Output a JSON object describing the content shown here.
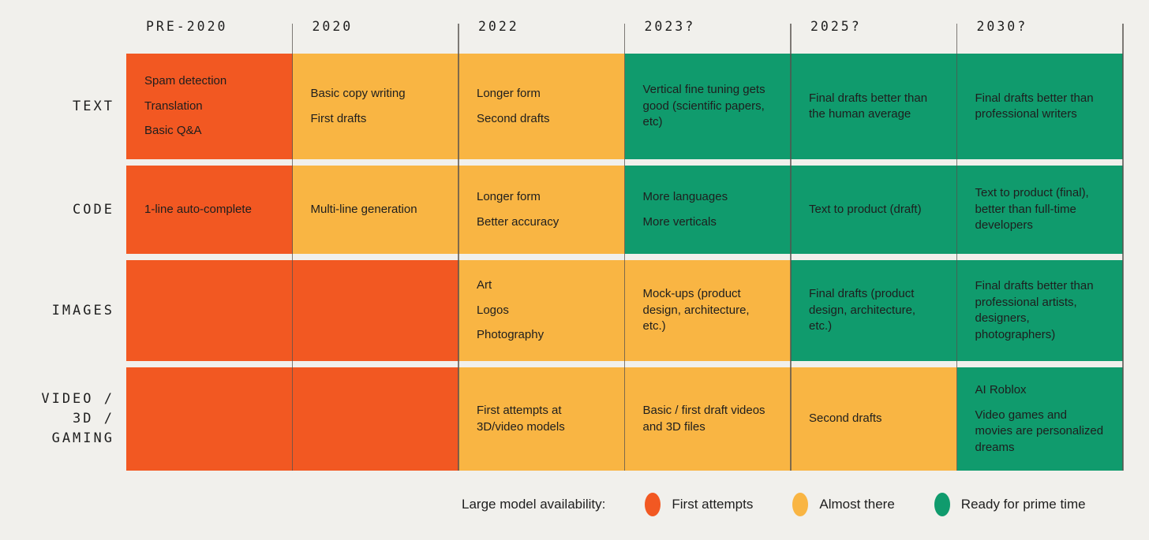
{
  "colors": {
    "background": "#F1F0EC",
    "text": "#1E1E1E",
    "grid_line": "#55524E",
    "first_attempts": "#F25822",
    "almost_there": "#F9B543",
    "ready": "#109B6D"
  },
  "chart_data": {
    "type": "table",
    "title": "Generative AI large model availability timeline",
    "columns": [
      "PRE-2020",
      "2020",
      "2022",
      "2023?",
      "2025?",
      "2030?"
    ],
    "rows": [
      {
        "label": "TEXT",
        "label_lines": [
          "TEXT"
        ],
        "cells": [
          {
            "status": "first_attempts",
            "items": [
              "Spam detection",
              "Translation",
              "Basic Q&A"
            ]
          },
          {
            "status": "almost_there",
            "items": [
              "Basic copy writing",
              "First drafts"
            ]
          },
          {
            "status": "almost_there",
            "items": [
              "Longer form",
              "Second drafts"
            ]
          },
          {
            "status": "ready",
            "items": [
              "Vertical fine tuning gets good (scientific papers, etc)"
            ]
          },
          {
            "status": "ready",
            "items": [
              "Final drafts better than the human average"
            ]
          },
          {
            "status": "ready",
            "items": [
              "Final drafts better than professional writers"
            ]
          }
        ]
      },
      {
        "label": "CODE",
        "label_lines": [
          "CODE"
        ],
        "cells": [
          {
            "status": "first_attempts",
            "items": [
              "1-line auto-complete"
            ]
          },
          {
            "status": "almost_there",
            "items": [
              "Multi-line generation"
            ]
          },
          {
            "status": "almost_there",
            "items": [
              "Longer form",
              "Better accuracy"
            ]
          },
          {
            "status": "ready",
            "items": [
              "More languages",
              "More verticals"
            ]
          },
          {
            "status": "ready",
            "items": [
              "Text to product (draft)"
            ]
          },
          {
            "status": "ready",
            "items": [
              "Text to product (final), better than full-time developers"
            ]
          }
        ]
      },
      {
        "label": "IMAGES",
        "label_lines": [
          "IMAGES"
        ],
        "cells": [
          {
            "status": "first_attempts",
            "items": []
          },
          {
            "status": "first_attempts",
            "items": []
          },
          {
            "status": "almost_there",
            "items": [
              "Art",
              "Logos",
              "Photography"
            ]
          },
          {
            "status": "almost_there",
            "items": [
              "Mock-ups (product design, architecture, etc.)"
            ]
          },
          {
            "status": "ready",
            "items": [
              "Final drafts (product design, architecture, etc.)"
            ]
          },
          {
            "status": "ready",
            "items": [
              "Final drafts better than professional artists, designers, photographers)"
            ]
          }
        ]
      },
      {
        "label": "VIDEO / 3D / GAMING",
        "label_lines": [
          "VIDEO /",
          "3D /",
          "GAMING"
        ],
        "cells": [
          {
            "status": "first_attempts",
            "items": []
          },
          {
            "status": "first_attempts",
            "items": []
          },
          {
            "status": "almost_there",
            "items": [
              "First attempts at 3D/video models"
            ]
          },
          {
            "status": "almost_there",
            "items": [
              "Basic / first draft videos and 3D files"
            ]
          },
          {
            "status": "almost_there",
            "items": [
              "Second drafts"
            ]
          },
          {
            "status": "ready",
            "items": [
              "AI Roblox",
              "Video games and movies are personalized dreams"
            ]
          }
        ]
      }
    ],
    "legend": {
      "label": "Large model availability:",
      "entries": [
        {
          "status": "first_attempts",
          "label": "First attempts"
        },
        {
          "status": "almost_there",
          "label": "Almost there"
        },
        {
          "status": "ready",
          "label": "Ready for prime time"
        }
      ]
    },
    "layout": {
      "legend_position": "bottom",
      "grid": "vertical-lines-only",
      "row_label_position": "left"
    }
  }
}
